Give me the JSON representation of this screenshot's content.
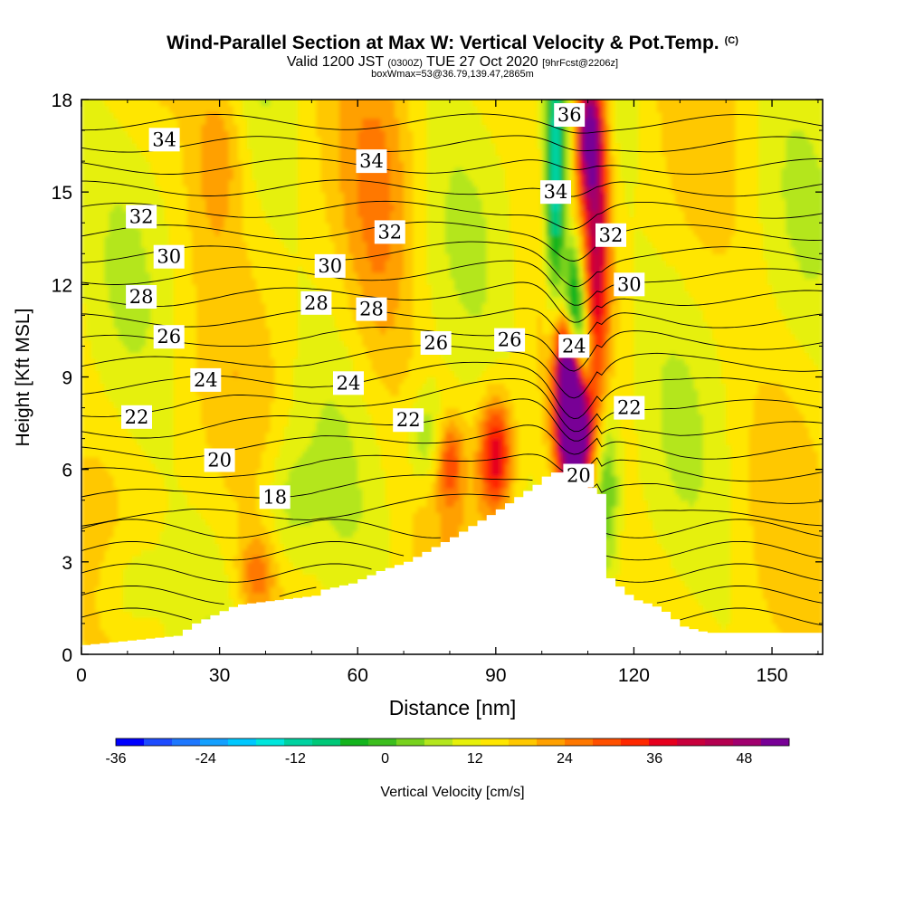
{
  "header": {
    "title": "Wind-Parallel Section at Max W: Vertical Velocity & Pot.Temp.",
    "copyright": "(C)",
    "valid_prefix": "Valid 1200 JST",
    "valid_z": "(0300Z)",
    "valid_date": "TUE 27 Oct 2020",
    "forecast": "[9hrFcst@2206z]",
    "box_info": "boxWmax=53@36.79,139.47,2865m"
  },
  "chart_data": {
    "type": "heatmap",
    "title": "Wind-Parallel Section at Max W: Vertical Velocity & Pot.Temp.",
    "xlabel": "Distance [nm]",
    "ylabel": "Height [Kft MSL]",
    "xlim": [
      0,
      161
    ],
    "ylim": [
      0,
      18
    ],
    "x_ticks": [
      0,
      30,
      60,
      90,
      120,
      150
    ],
    "y_ticks": [
      0,
      3,
      6,
      9,
      12,
      15,
      18
    ],
    "colorbar": {
      "label": "Vertical Velocity [cm/s]",
      "min": -36,
      "max": 54,
      "step": 3,
      "tick_values": [
        -36,
        -24,
        -12,
        0,
        12,
        24,
        36,
        48
      ],
      "colors": [
        "#0000ff",
        "#1e4cff",
        "#1e78ff",
        "#14a0ff",
        "#00c8ff",
        "#00e6dc",
        "#00d2a0",
        "#00c878",
        "#14b41e",
        "#3cbe1e",
        "#78d21e",
        "#b4e61e",
        "#e6f00a",
        "#ffe600",
        "#ffc800",
        "#ffa000",
        "#ff7800",
        "#ff5000",
        "#ff2800",
        "#e6001e",
        "#c8003c",
        "#b40050",
        "#a0006e",
        "#780096"
      ]
    },
    "background_w": 4,
    "updrafts": [
      {
        "x": 107,
        "z": 7.5,
        "sx": 2.5,
        "sz": 1.4,
        "w": 48
      },
      {
        "x": 106,
        "z": 9.5,
        "sx": 2.0,
        "sz": 1.2,
        "w": 30
      },
      {
        "x": 112,
        "z": 14.0,
        "sx": 2.0,
        "sz": 3.5,
        "w": 22
      },
      {
        "x": 110,
        "z": 17.0,
        "sx": 1.8,
        "sz": 1.5,
        "w": 28
      },
      {
        "x": 107,
        "z": 4.5,
        "sx": 1.6,
        "sz": 1.5,
        "w": 22
      },
      {
        "x": 90,
        "z": 6.5,
        "sx": 2.5,
        "sz": 1.3,
        "w": 20
      },
      {
        "x": 80,
        "z": 6.3,
        "sx": 2.0,
        "sz": 1.0,
        "w": 12
      },
      {
        "x": 38,
        "z": 2.5,
        "sx": 3.0,
        "sz": 1.0,
        "w": 10
      },
      {
        "x": 30,
        "z": 16.5,
        "sx": 4.0,
        "sz": 2.0,
        "w": 8
      },
      {
        "x": 65,
        "z": 14.0,
        "sx": 5.0,
        "sz": 4.0,
        "w": 6
      }
    ],
    "downdrafts": [
      {
        "x": 103,
        "z": 15.5,
        "sx": 1.6,
        "sz": 3.0,
        "w": -24
      },
      {
        "x": 107,
        "z": 11.0,
        "sx": 1.5,
        "sz": 1.5,
        "w": -28
      },
      {
        "x": 109,
        "z": 9.5,
        "sx": 1.5,
        "sz": 1.2,
        "w": -18
      },
      {
        "x": 114,
        "z": 5.5,
        "sx": 2.0,
        "sz": 2.0,
        "w": -12
      },
      {
        "x": 75,
        "z": 7.0,
        "sx": 3.0,
        "sz": 1.2,
        "w": -8
      },
      {
        "x": 45,
        "z": 5.0,
        "sx": 4.0,
        "sz": 1.5,
        "w": -5
      },
      {
        "x": 10,
        "z": 2.0,
        "sx": 5.0,
        "sz": 1.5,
        "w": -6
      }
    ],
    "terrain": [
      [
        0,
        0.3
      ],
      [
        20,
        0.6
      ],
      [
        24,
        1.0
      ],
      [
        30,
        1.4
      ],
      [
        33,
        1.6
      ],
      [
        50,
        1.9
      ],
      [
        52,
        2.1
      ],
      [
        58,
        2.3
      ],
      [
        64,
        2.7
      ],
      [
        70,
        3.0
      ],
      [
        80,
        3.8
      ],
      [
        90,
        4.7
      ],
      [
        98,
        5.5
      ],
      [
        101,
        5.9
      ],
      [
        105,
        5.9
      ],
      [
        112,
        5.2
      ],
      [
        113,
        2.6
      ],
      [
        119,
        1.8
      ],
      [
        125,
        1.5
      ],
      [
        130,
        0.9
      ],
      [
        135,
        0.7
      ],
      [
        161,
        0.7
      ]
    ],
    "isentropes": {
      "values": [
        18,
        19,
        20,
        21,
        22,
        23,
        24,
        25,
        26,
        27,
        28,
        29,
        30,
        31,
        32,
        33,
        34,
        35,
        36
      ],
      "unit_spacing": 0.72,
      "base_height": 4.3
    },
    "contour_labels": [
      {
        "text": "34",
        "x": 18,
        "z": 16.7
      },
      {
        "text": "32",
        "x": 13,
        "z": 14.2
      },
      {
        "text": "30",
        "x": 19,
        "z": 12.9
      },
      {
        "text": "28",
        "x": 13,
        "z": 11.6
      },
      {
        "text": "26",
        "x": 19,
        "z": 10.3
      },
      {
        "text": "24",
        "x": 27,
        "z": 8.9
      },
      {
        "text": "22",
        "x": 12,
        "z": 7.7
      },
      {
        "text": "20",
        "x": 30,
        "z": 6.3
      },
      {
        "text": "18",
        "x": 42,
        "z": 5.1
      },
      {
        "text": "34",
        "x": 63,
        "z": 16.0
      },
      {
        "text": "32",
        "x": 67,
        "z": 13.7
      },
      {
        "text": "30",
        "x": 54,
        "z": 12.6
      },
      {
        "text": "28",
        "x": 51,
        "z": 11.4
      },
      {
        "text": "28",
        "x": 63,
        "z": 11.2
      },
      {
        "text": "24",
        "x": 58,
        "z": 8.8
      },
      {
        "text": "22",
        "x": 71,
        "z": 7.6
      },
      {
        "text": "26",
        "x": 77,
        "z": 10.1
      },
      {
        "text": "26",
        "x": 93,
        "z": 10.2
      },
      {
        "text": "36",
        "x": 106,
        "z": 17.5
      },
      {
        "text": "34",
        "x": 103,
        "z": 15.0
      },
      {
        "text": "32",
        "x": 115,
        "z": 13.6
      },
      {
        "text": "30",
        "x": 119,
        "z": 12.0
      },
      {
        "text": "24",
        "x": 107,
        "z": 10.0
      },
      {
        "text": "22",
        "x": 119,
        "z": 8.0
      },
      {
        "text": "20",
        "x": 108,
        "z": 5.8
      }
    ]
  }
}
